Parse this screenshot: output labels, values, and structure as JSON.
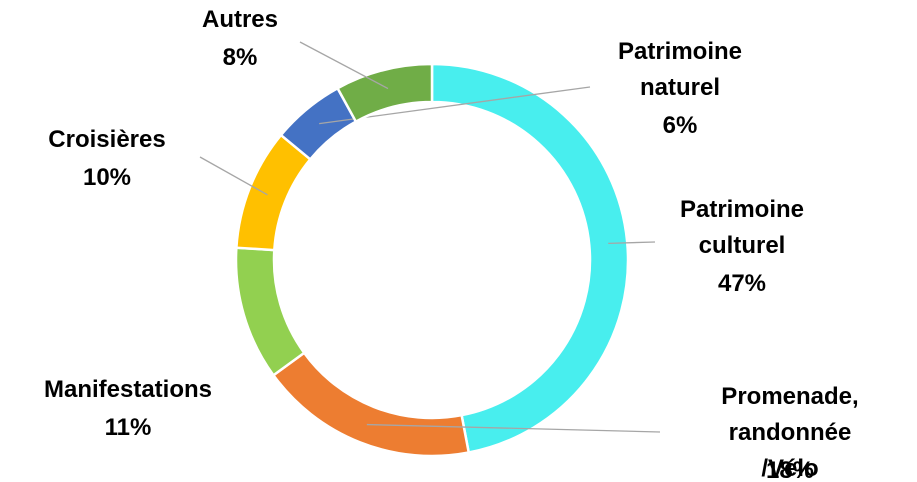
{
  "chart_data": {
    "type": "pie",
    "categories": [
      "Patrimoine\nculturel",
      "Promenade,\nrandonnée /Vélo",
      "Manifestations",
      "Croisières",
      "Patrimoine\nnaturel",
      "Autres"
    ],
    "values": [
      47,
      18,
      11,
      10,
      6,
      8
    ],
    "value_labels": [
      "47%",
      "18%",
      "11%",
      "10%",
      "6%",
      "8%"
    ],
    "colors": [
      "#48eeee",
      "#ed7d31",
      "#92d050",
      "#ffc000",
      "#4472c4",
      "#70ad47"
    ]
  }
}
